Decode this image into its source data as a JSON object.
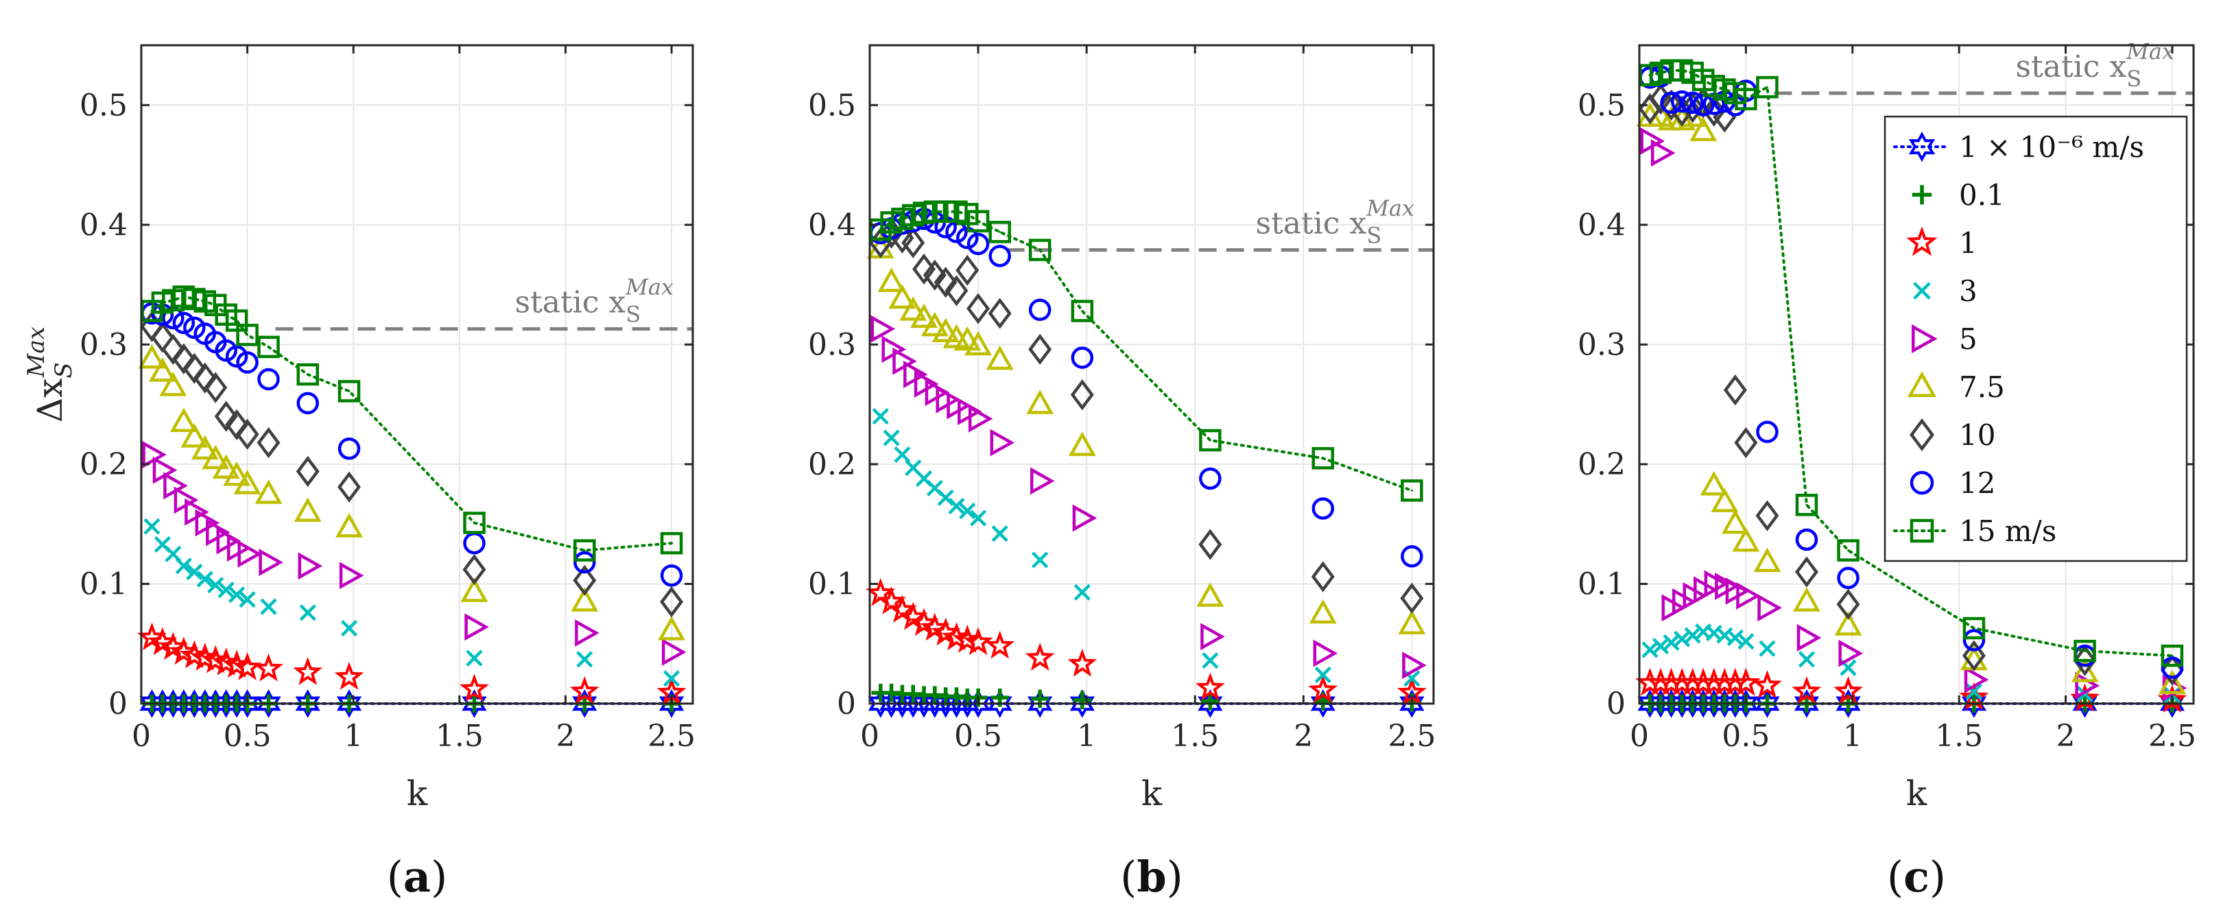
{
  "figure": {
    "ylabel": "Δx_S^Max",
    "static_label": {
      "prefix": "static x",
      "sub": "S",
      "sup": "Max"
    }
  },
  "colors": {
    "1e-6": "#0000ff",
    "0.1": "#008000",
    "1": "#ff0000",
    "3": "#00bfbf",
    "5": "#bf00bf",
    "7.5": "#bfbf00",
    "10": "#404040",
    "12": "#0000ff",
    "15": "#008000",
    "static_line": "#808080",
    "grid": "#e6e6e6",
    "axis": "#262626"
  },
  "legend": {
    "items": [
      {
        "key": "1e-6",
        "label": "1 × 10⁻⁶ m/s",
        "marker": "hexagram"
      },
      {
        "key": "0.1",
        "label": "0.1",
        "marker": "plus"
      },
      {
        "key": "1",
        "label": "1",
        "marker": "star"
      },
      {
        "key": "3",
        "label": "3",
        "marker": "x"
      },
      {
        "key": "5",
        "label": "5",
        "marker": "triangle-right"
      },
      {
        "key": "7.5",
        "label": "7.5",
        "marker": "triangle-up"
      },
      {
        "key": "10",
        "label": "10",
        "marker": "diamond"
      },
      {
        "key": "12",
        "label": "12",
        "marker": "circle"
      },
      {
        "key": "15",
        "label": "15 m/s",
        "marker": "square"
      }
    ]
  },
  "chart_data": [
    {
      "type": "scatter",
      "panel_label": "(a)",
      "xlabel": "k",
      "ylabel": "Δx_S^Max",
      "xlim": [
        0,
        2.6
      ],
      "ylim": [
        0,
        0.55
      ],
      "xticks": [
        0,
        0.5,
        1,
        1.5,
        2,
        2.5
      ],
      "yticks": [
        0,
        0.1,
        0.2,
        0.3,
        0.4,
        0.5
      ],
      "grid": true,
      "static_xS_max": 0.313,
      "static_label_pos": "upper-right",
      "k": [
        0.05,
        0.1,
        0.15,
        0.2,
        0.25,
        0.3,
        0.35,
        0.4,
        0.45,
        0.5,
        0.6,
        0.785,
        0.98,
        1.57,
        2.09,
        2.5
      ],
      "series": [
        {
          "name": "1 × 10⁻⁶ m/s",
          "key": "1e-6",
          "line": true,
          "values": [
            0,
            0,
            0,
            0,
            0,
            0,
            0,
            0,
            0,
            0,
            0,
            0,
            0,
            0,
            0,
            0
          ]
        },
        {
          "name": "0.1",
          "key": "0.1",
          "values": [
            0,
            0,
            0,
            0,
            0,
            0,
            0,
            0,
            0,
            0,
            0,
            0,
            0,
            0,
            0,
            0
          ]
        },
        {
          "name": "1",
          "key": "1",
          "values": [
            0.055,
            0.051,
            0.047,
            0.043,
            0.04,
            0.038,
            0.036,
            0.034,
            0.032,
            0.03,
            0.029,
            0.026,
            0.022,
            0.012,
            0.01,
            0.009
          ]
        },
        {
          "name": "3",
          "key": "3",
          "values": [
            0.148,
            0.133,
            0.125,
            0.115,
            0.11,
            0.104,
            0.099,
            0.095,
            0.091,
            0.087,
            0.081,
            0.076,
            0.063,
            0.038,
            0.037,
            0.021
          ]
        },
        {
          "name": "5",
          "key": "5",
          "values": [
            0.208,
            0.195,
            0.182,
            0.17,
            0.16,
            0.151,
            0.143,
            0.136,
            0.13,
            0.125,
            0.118,
            0.115,
            0.107,
            0.064,
            0.059,
            0.043
          ]
        },
        {
          "name": "7.5",
          "key": "7.5",
          "values": [
            0.288,
            0.277,
            0.265,
            0.235,
            0.222,
            0.212,
            0.204,
            0.196,
            0.19,
            0.183,
            0.175,
            0.16,
            0.147,
            0.093,
            0.085,
            0.061
          ]
        },
        {
          "name": "10",
          "key": "10",
          "values": [
            0.315,
            0.306,
            0.296,
            0.288,
            0.28,
            0.272,
            0.264,
            0.24,
            0.233,
            0.225,
            0.218,
            0.194,
            0.181,
            0.112,
            0.103,
            0.085
          ]
        },
        {
          "name": "12",
          "key": "12",
          "values": [
            0.326,
            0.325,
            0.322,
            0.318,
            0.314,
            0.309,
            0.302,
            0.295,
            0.29,
            0.285,
            0.271,
            0.251,
            0.213,
            0.134,
            0.118,
            0.107
          ]
        },
        {
          "name": "15 m/s",
          "key": "15",
          "line": true,
          "values": [
            0.328,
            0.335,
            0.337,
            0.34,
            0.338,
            0.336,
            0.333,
            0.325,
            0.32,
            0.308,
            0.298,
            0.275,
            0.261,
            0.151,
            0.128,
            0.134
          ]
        }
      ]
    },
    {
      "type": "scatter",
      "panel_label": "(b)",
      "xlabel": "k",
      "ylabel": "",
      "xlim": [
        0,
        2.6
      ],
      "ylim": [
        0,
        0.55
      ],
      "xticks": [
        0,
        0.5,
        1,
        1.5,
        2,
        2.5
      ],
      "yticks": [
        0,
        0.1,
        0.2,
        0.3,
        0.4,
        0.5
      ],
      "grid": true,
      "static_xS_max": 0.379,
      "static_label_pos": "upper-right",
      "k": [
        0.05,
        0.1,
        0.15,
        0.2,
        0.25,
        0.3,
        0.35,
        0.4,
        0.45,
        0.5,
        0.6,
        0.785,
        0.98,
        1.57,
        2.09,
        2.5
      ],
      "series": [
        {
          "name": "1 × 10⁻⁶ m/s",
          "key": "1e-6",
          "line": true,
          "values": [
            0,
            0,
            0,
            0,
            0,
            0,
            0,
            0,
            0,
            0,
            0,
            0,
            0,
            0,
            0,
            0
          ]
        },
        {
          "name": "0.1",
          "key": "0.1",
          "values": [
            0.009,
            0.009,
            0.008,
            0.008,
            0.007,
            0.007,
            0.006,
            0.006,
            0.005,
            0.005,
            0.005,
            0.004,
            0.003,
            0.002,
            0.002,
            0.001
          ]
        },
        {
          "name": "1",
          "key": "1",
          "values": [
            0.092,
            0.085,
            0.078,
            0.072,
            0.067,
            0.063,
            0.059,
            0.055,
            0.053,
            0.051,
            0.048,
            0.038,
            0.033,
            0.013,
            0.011,
            0.009
          ]
        },
        {
          "name": "3",
          "key": "3",
          "values": [
            0.24,
            0.222,
            0.208,
            0.197,
            0.188,
            0.18,
            0.172,
            0.165,
            0.161,
            0.155,
            0.142,
            0.12,
            0.093,
            0.036,
            0.024,
            0.021
          ]
        },
        {
          "name": "5",
          "key": "5",
          "values": [
            0.313,
            0.296,
            0.286,
            0.275,
            0.267,
            0.26,
            0.254,
            0.249,
            0.244,
            0.238,
            0.218,
            0.186,
            0.155,
            0.056,
            0.042,
            0.032
          ]
        },
        {
          "name": "7.5",
          "key": "7.5",
          "values": [
            0.38,
            0.352,
            0.338,
            0.328,
            0.322,
            0.315,
            0.31,
            0.305,
            0.303,
            0.299,
            0.287,
            0.25,
            0.215,
            0.089,
            0.075,
            0.066
          ]
        },
        {
          "name": "10",
          "key": "10",
          "values": [
            0.385,
            0.393,
            0.389,
            0.385,
            0.363,
            0.358,
            0.352,
            0.345,
            0.362,
            0.33,
            0.326,
            0.296,
            0.258,
            0.133,
            0.106,
            0.088
          ]
        },
        {
          "name": "12",
          "key": "12",
          "values": [
            0.393,
            0.397,
            0.401,
            0.403,
            0.405,
            0.402,
            0.398,
            0.394,
            0.389,
            0.384,
            0.374,
            0.329,
            0.289,
            0.188,
            0.163,
            0.123
          ]
        },
        {
          "name": "15 m/s",
          "key": "15",
          "line": true,
          "values": [
            0.396,
            0.402,
            0.405,
            0.408,
            0.41,
            0.411,
            0.411,
            0.411,
            0.409,
            0.403,
            0.394,
            0.379,
            0.328,
            0.22,
            0.205,
            0.178
          ]
        }
      ]
    },
    {
      "type": "scatter",
      "panel_label": "(c)",
      "xlabel": "k",
      "ylabel": "",
      "xlim": [
        0,
        2.6
      ],
      "ylim": [
        0,
        0.55
      ],
      "xticks": [
        0,
        0.5,
        1,
        1.5,
        2,
        2.5
      ],
      "yticks": [
        0,
        0.1,
        0.2,
        0.3,
        0.4,
        0.5
      ],
      "grid": true,
      "static_xS_max": 0.51,
      "static_label_pos": "upper-right",
      "legend_position": "upper-right",
      "k": [
        0.05,
        0.1,
        0.15,
        0.2,
        0.25,
        0.3,
        0.35,
        0.4,
        0.45,
        0.5,
        0.6,
        0.785,
        0.98,
        1.57,
        2.09,
        2.5
      ],
      "series": [
        {
          "name": "1 × 10⁻⁶ m/s",
          "key": "1e-6",
          "line": true,
          "values": [
            0,
            0,
            0,
            0,
            0,
            0,
            0,
            0,
            0,
            0,
            0,
            0,
            0,
            0,
            0,
            0
          ]
        },
        {
          "name": "0.1",
          "key": "0.1",
          "values": [
            0,
            0,
            0,
            0,
            0,
            0,
            0,
            0,
            0,
            0,
            0,
            0,
            0,
            0,
            0,
            0
          ]
        },
        {
          "name": "1",
          "key": "1",
          "values": [
            0.017,
            0.017,
            0.017,
            0.017,
            0.017,
            0.017,
            0.017,
            0.017,
            0.017,
            0.017,
            0.015,
            0.01,
            0.01,
            0.005,
            0.004,
            0.003
          ]
        },
        {
          "name": "3",
          "key": "3",
          "values": [
            0.045,
            0.048,
            0.051,
            0.054,
            0.057,
            0.06,
            0.059,
            0.057,
            0.055,
            0.052,
            0.046,
            0.037,
            0.03,
            0.01,
            0.008,
            0.007
          ]
        },
        {
          "name": "5",
          "key": "5",
          "values": [
            0.47,
            0.46,
            0.08,
            0.085,
            0.09,
            0.095,
            0.1,
            0.098,
            0.094,
            0.09,
            0.08,
            0.055,
            0.042,
            0.02,
            0.015,
            0.013
          ]
        },
        {
          "name": "7.5",
          "key": "7.5",
          "values": [
            0.49,
            0.49,
            0.487,
            0.487,
            0.49,
            0.478,
            0.182,
            0.168,
            0.15,
            0.135,
            0.118,
            0.085,
            0.065,
            0.036,
            0.026,
            0.016
          ]
        },
        {
          "name": "10",
          "key": "10",
          "values": [
            0.497,
            0.505,
            0.5,
            0.495,
            0.498,
            0.502,
            0.495,
            0.49,
            0.262,
            0.218,
            0.157,
            0.11,
            0.083,
            0.04,
            0.036,
            0.028
          ]
        },
        {
          "name": "12",
          "key": "12",
          "values": [
            0.523,
            0.524,
            0.502,
            0.503,
            0.502,
            0.5,
            0.501,
            0.503,
            0.5,
            0.512,
            0.227,
            0.137,
            0.105,
            0.053,
            0.04,
            0.03
          ]
        },
        {
          "name": "15 m/s",
          "key": "15",
          "line": true,
          "values": [
            0.525,
            0.527,
            0.529,
            0.529,
            0.527,
            0.521,
            0.516,
            0.513,
            0.51,
            0.505,
            0.515,
            0.166,
            0.128,
            0.063,
            0.044,
            0.04
          ]
        }
      ]
    }
  ]
}
